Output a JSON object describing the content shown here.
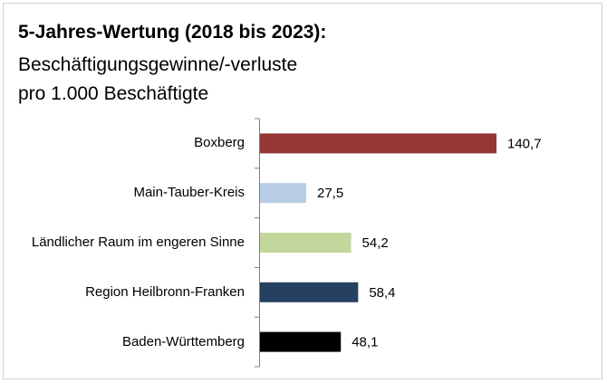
{
  "chart_data": {
    "type": "bar",
    "orientation": "horizontal",
    "title": "5-Jahres-Wertung (2018 bis 2023):",
    "subtitle": [
      "Beschäftigungsgewinne/-verluste",
      "pro 1.000 Beschäftigte"
    ],
    "categories": [
      "Boxberg",
      "Main-Tauber-Kreis",
      "Ländlicher Raum im engeren Sinne",
      "Region Heilbronn-Franken",
      "Baden-Württemberg"
    ],
    "values": [
      140.7,
      27.5,
      54.2,
      58.4,
      48.1
    ],
    "value_labels": [
      "140,7",
      "27,5",
      "54,2",
      "58,4",
      "48,1"
    ],
    "colors": [
      "#953735",
      "#b9cde5",
      "#c3d69b",
      "#254061",
      "#000000"
    ]
  }
}
